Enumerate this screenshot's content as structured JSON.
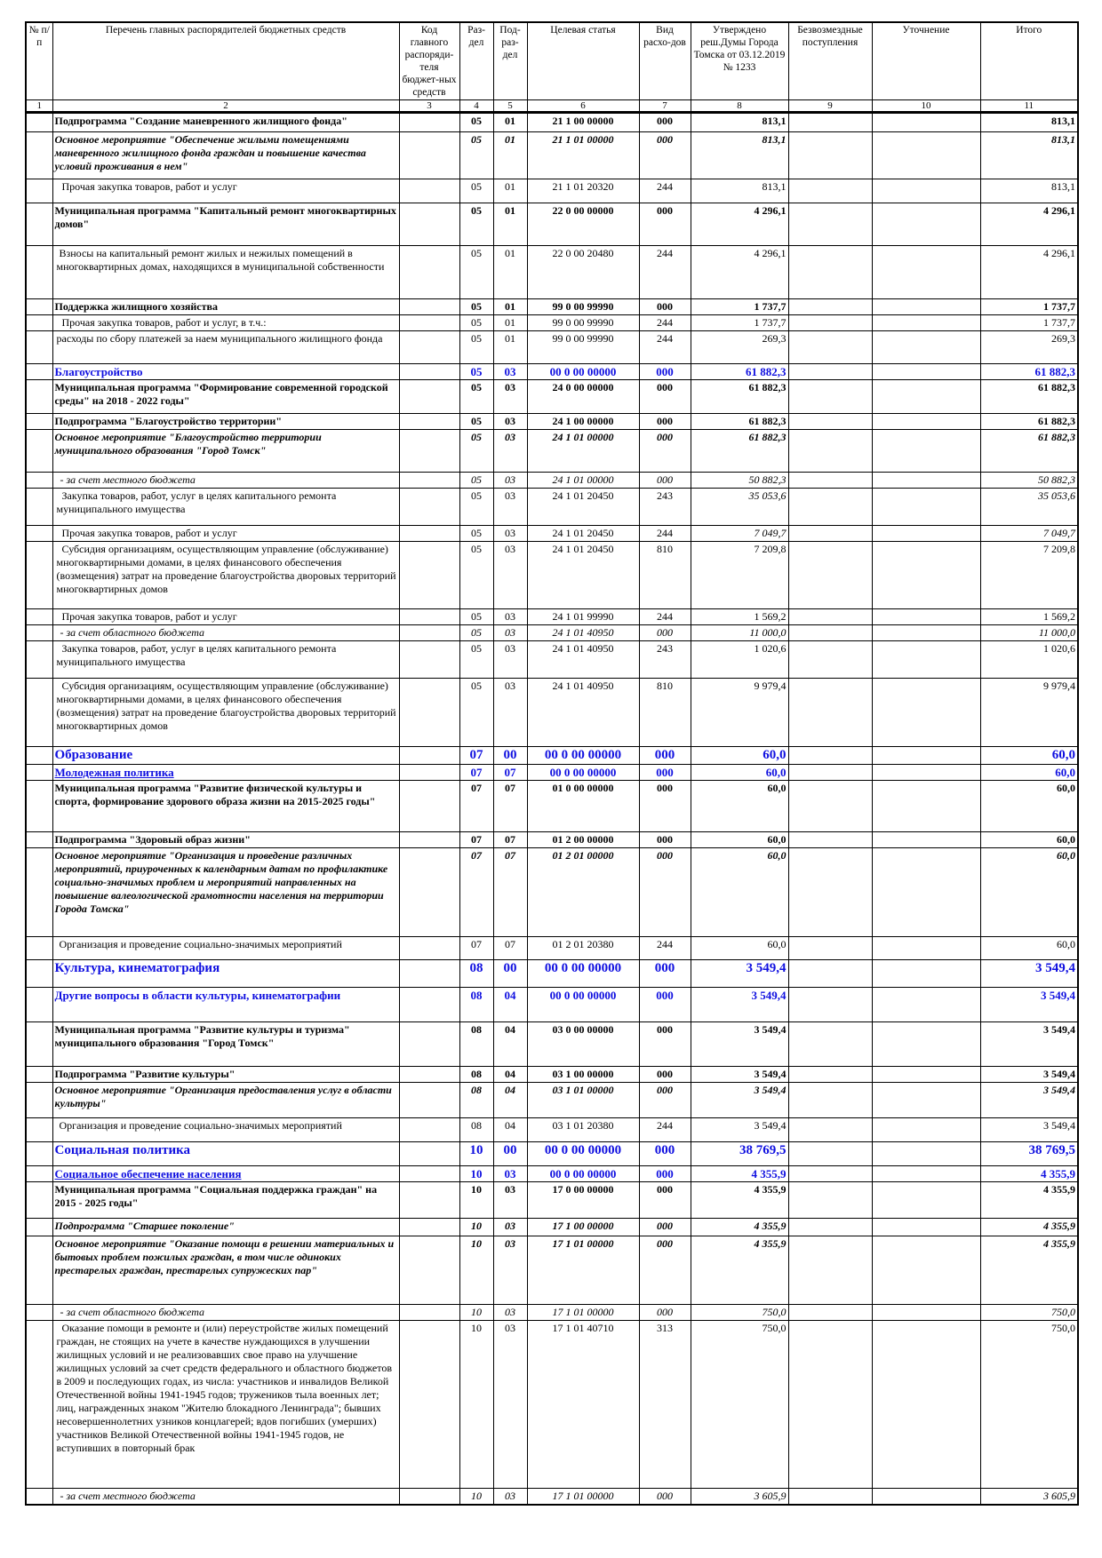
{
  "header": {
    "columns": [
      "№ п/п",
      "Перечень главных распорядителей бюджетных средств",
      "Код главного распоряди-теля бюджет-ных средств",
      "Раз-дел",
      "Под-раз-дел",
      "Целевая статья",
      "Вид расхо-дов",
      "Утверждено реш.Думы Города Томска от 03.12.2019 № 1233",
      "Безвозмездные поступления",
      "Уточнение",
      "Итого"
    ],
    "numbers": [
      "1",
      "2",
      "3",
      "4",
      "5",
      "6",
      "7",
      "8",
      "9",
      "10",
      "11"
    ]
  },
  "colors": {
    "highlight": "#1010e0"
  },
  "rows": [
    {
      "style": "b",
      "name": "Подпрограмма \"Создание маневренного жилищного фонда\"",
      "razdel": "05",
      "podrazdel": "01",
      "target": "21 1 00 00000",
      "vid": "000",
      "approved": "813,1",
      "total": "813,1"
    },
    {
      "style": "bi",
      "name": "Основное мероприятие \"Обеспечение жилыми помещениями маневренного жилищного фонда граждан и повышение качества условий проживания в нем\"",
      "razdel": "05",
      "podrazdel": "01",
      "target": "21 1 01 00000",
      "vid": "000",
      "approved": "813,1",
      "total": "813,1"
    },
    {
      "style": "n",
      "name": "  Прочая закупка товаров, работ и услуг",
      "razdel": "05",
      "podrazdel": "01",
      "target": "21 1 01 20320",
      "vid": "244",
      "approved": "813,1",
      "total": "813,1"
    },
    {
      "style": "b",
      "name": "Муниципальная программа \"Капитальный ремонт многоквартирных домов\"",
      "razdel": "05",
      "podrazdel": "01",
      "target": "22 0 00 00000",
      "vid": "000",
      "approved": "4 296,1",
      "total": "4 296,1"
    },
    {
      "style": "n",
      "name": " Взносы на капитальный ремонт жилых и нежилых помещений в многоквартирных домах, находящихся в муниципальной собственности",
      "razdel": "05",
      "podrazdel": "01",
      "target": "22 0 00 20480",
      "vid": "244",
      "approved": "4 296,1",
      "total": "4 296,1"
    },
    {
      "style": "b",
      "name": "Поддержка жилищного хозяйства",
      "razdel": "05",
      "podrazdel": "01",
      "target": "99 0 00 99990",
      "vid": "000",
      "approved": "1 737,7",
      "total": "1 737,7"
    },
    {
      "style": "n",
      "name": "  Прочая закупка товаров, работ и услуг, в т.ч.:",
      "razdel": "05",
      "podrazdel": "01",
      "target": "99 0 00 99990",
      "vid": "244",
      "approved": "1 737,7",
      "total": "1 737,7"
    },
    {
      "style": "n",
      "name": "расходы по сбору платежей за наем муниципального жилищного фонда",
      "razdel": "05",
      "podrazdel": "01",
      "target": "99 0 00 99990",
      "vid": "244",
      "approved": "269,3",
      "total": "269,3"
    },
    {
      "style": "blue",
      "name": "Благоустройство",
      "razdel": "05",
      "podrazdel": "03",
      "target": "00 0 00 00000",
      "vid": "000",
      "approved": "61 882,3",
      "total": "61 882,3"
    },
    {
      "style": "b",
      "name": "Муниципальная программа \"Формирование современной городской среды\" на 2018 - 2022 годы\"",
      "razdel": "05",
      "podrazdel": "03",
      "target": "24 0 00 00000",
      "vid": "000",
      "approved": "61 882,3",
      "total": "61 882,3"
    },
    {
      "style": "b",
      "name": "Подпрограмма \"Благоустройство территории\"",
      "razdel": "05",
      "podrazdel": "03",
      "target": "24 1 00 00000",
      "vid": "000",
      "approved": "61 882,3",
      "total": "61 882,3"
    },
    {
      "style": "bi",
      "name": "Основное мероприятие \"Благоустройство территории муниципального образования \"Город Томск\"",
      "razdel": "05",
      "podrazdel": "03",
      "target": "24 1 01 00000",
      "vid": "000",
      "approved": "61 882,3",
      "total": "61 882,3"
    },
    {
      "style": "i",
      "name": "  - за счет местного бюджета",
      "razdel": "05",
      "podrazdel": "03",
      "target": "24 1 01 00000",
      "vid": "000",
      "approved": "50 882,3",
      "total": "50 882,3"
    },
    {
      "style": "n",
      "name": "  Закупка товаров, работ, услуг в целях капитального ремонта муниципального имущества",
      "razdel": "05",
      "podrazdel": "03",
      "target": "24 1 01 20450",
      "vid": "243",
      "approved": "35 053,6",
      "total": "35 053,6",
      "num_italic": true
    },
    {
      "style": "n",
      "name": "  Прочая закупка товаров, работ и услуг",
      "razdel": "05",
      "podrazdel": "03",
      "target": "24 1 01 20450",
      "vid": "244",
      "approved": "7 049,7",
      "total": "7 049,7",
      "num_italic": true
    },
    {
      "style": "n",
      "name": "  Субсидия организациям, осуществляющим управление (обслуживание) многоквартирными домами, в целях финансового обеспечения (возмещения) затрат на проведение благоустройства дворовых территорий многоквартирных домов",
      "razdel": "05",
      "podrazdel": "03",
      "target": "24 1 01 20450",
      "vid": "810",
      "approved": "7 209,8",
      "total": "7 209,8"
    },
    {
      "style": "n",
      "name": "  Прочая закупка товаров, работ и услуг",
      "razdel": "05",
      "podrazdel": "03",
      "target": "24 1 01 99990",
      "vid": "244",
      "approved": "1 569,2",
      "total": "1 569,2"
    },
    {
      "style": "i",
      "name": "  - за счет областного бюджета",
      "razdel": "05",
      "podrazdel": "03",
      "target": "24 1 01 40950",
      "vid": "000",
      "approved": "11 000,0",
      "total": "11 000,0"
    },
    {
      "style": "n",
      "name": "  Закупка товаров, работ, услуг в целях капитального ремонта муниципального имущества",
      "razdel": "05",
      "podrazdel": "03",
      "target": "24 1 01 40950",
      "vid": "243",
      "approved": "1 020,6",
      "total": "1 020,6"
    },
    {
      "style": "n",
      "name": "  Субсидия организациям, осуществляющим управление (обслуживание) многоквартирными домами, в целях финансового обеспечения (возмещения) затрат на проведение благоустройства дворовых территорий многоквартирных домов",
      "razdel": "05",
      "podrazdel": "03",
      "target": "24 1 01 40950",
      "vid": "810",
      "approved": "9 979,4",
      "total": "9 979,4"
    },
    {
      "style": "blue2",
      "name": "Образование",
      "razdel": "07",
      "podrazdel": "00",
      "target": "00 0 00 00000",
      "vid": "000",
      "approved": "60,0",
      "total": "60,0"
    },
    {
      "style": "blue",
      "name": "Молодежная политика",
      "razdel": "07",
      "podrazdel": "07",
      "target": "00 0 00 00000",
      "vid": "000",
      "approved": "60,0",
      "total": "60,0",
      "underline": true
    },
    {
      "style": "b",
      "name": "Муниципальная программа \"Развитие физической культуры и спорта, формирование здорового образа жизни на 2015-2025 годы\"",
      "razdel": "07",
      "podrazdel": "07",
      "target": "01 0 00 00000",
      "vid": "000",
      "approved": "60,0",
      "total": "60,0"
    },
    {
      "style": "b",
      "name": "Подпрограмма \"Здоровый образ жизни\"",
      "razdel": "07",
      "podrazdel": "07",
      "target": "01 2 00 00000",
      "vid": "000",
      "approved": "60,0",
      "total": "60,0"
    },
    {
      "style": "bi",
      "name": "Основное мероприятие \"Организация и проведение различных мероприятий, приуроченных к календарным датам по профилактике социально-значимых проблем и мероприятий направленных на повышение валеологической грамотности населения на территории Города Томска\"",
      "razdel": "07",
      "podrazdel": "07",
      "target": "01 2 01 00000",
      "vid": "000",
      "approved": "60,0",
      "total": "60,0"
    },
    {
      "style": "n",
      "name": " Организация и проведение социально-значимых мероприятий",
      "razdel": "07",
      "podrazdel": "07",
      "target": "01 2 01 20380",
      "vid": "244",
      "approved": "60,0",
      "total": "60,0"
    },
    {
      "style": "blue2",
      "name": "Культура, кинематография",
      "razdel": "08",
      "podrazdel": "00",
      "target": "00 0 00 00000",
      "vid": "000",
      "approved": "3 549,4",
      "total": "3 549,4"
    },
    {
      "style": "blue",
      "name": "Другие вопросы в области культуры, кинематографии",
      "razdel": "08",
      "podrazdel": "04",
      "target": "00 0 00 00000",
      "vid": "000",
      "approved": "3 549,4",
      "total": "3 549,4"
    },
    {
      "style": "b",
      "name": "Муниципальная программа \"Развитие культуры и туризма\" муниципального образования \"Город Томск\"",
      "razdel": "08",
      "podrazdel": "04",
      "target": "03 0 00 00000",
      "vid": "000",
      "approved": "3 549,4",
      "total": "3 549,4"
    },
    {
      "style": "b",
      "name": "Подпрограмма \"Развитие культуры\"",
      "razdel": "08",
      "podrazdel": "04",
      "target": "03 1 00 00000",
      "vid": "000",
      "approved": "3 549,4",
      "total": "3 549,4"
    },
    {
      "style": "bi",
      "name": "Основное мероприятие \"Организация предоставления услуг в области культуры\"",
      "razdel": "08",
      "podrazdel": "04",
      "target": "03 1 01 00000",
      "vid": "000",
      "approved": "3 549,4",
      "total": "3 549,4"
    },
    {
      "style": "n",
      "name": " Организация и проведение социально-значимых мероприятий",
      "razdel": "08",
      "podrazdel": "04",
      "target": "03 1 01 20380",
      "vid": "244",
      "approved": "3 549,4",
      "total": "3 549,4"
    },
    {
      "style": "blue2",
      "name": "Социальная политика",
      "razdel": "10",
      "podrazdel": "00",
      "target": "00 0 00 00000",
      "vid": "000",
      "approved": "38 769,5",
      "total": "38 769,5"
    },
    {
      "style": "blue",
      "name": "Социальное обеспечение населения",
      "razdel": "10",
      "podrazdel": "03",
      "target": "00 0 00 00000",
      "vid": "000",
      "approved": "4 355,9",
      "total": "4 355,9",
      "underline": true
    },
    {
      "style": "b",
      "name": "Муниципальная программа \"Социальная поддержка граждан\" на 2015 - 2025 годы\"",
      "razdel": "10",
      "podrazdel": "03",
      "target": "17 0 00 00000",
      "vid": "000",
      "approved": "4 355,9",
      "total": "4 355,9"
    },
    {
      "style": "bi",
      "name": "Подпрограмма \"Старшее поколение\"",
      "razdel": "10",
      "podrazdel": "03",
      "target": "17 1 00 00000",
      "vid": "000",
      "approved": "4 355,9",
      "total": "4 355,9"
    },
    {
      "style": "bi",
      "name": "Основное мероприятие \"Оказание помощи в решении материальных и бытовых проблем пожилых граждан, в том числе одиноких престарелых граждан, престарелых супружеских пар\"",
      "razdel": "10",
      "podrazdel": "03",
      "target": "17 1 01 00000",
      "vid": "000",
      "approved": "4 355,9",
      "total": "4 355,9"
    },
    {
      "style": "i",
      "name": "  - за счет областного бюджета",
      "razdel": "10",
      "podrazdel": "03",
      "target": "17 1 01 00000",
      "vid": "000",
      "approved": "750,0",
      "total": "750,0"
    },
    {
      "style": "n",
      "name": "  Оказание помощи в ремонте и (или) переустройстве жилых помещений граждан, не стоящих на учете в качестве нуждающихся в улучшении жилищных условий и не реализовавших свое право на улучшение жилищных условий за счет средств федерального и областного бюджетов в 2009 и последующих годах, из числа: участников и инвалидов Великой Отечественной войны 1941-1945 годов; тружеников тыла военных лет; лиц, награжденных знаком \"Жителю блокадного Ленинграда\"; бывших несовершеннолетних узников концлагерей; вдов погибших (умерших) участников Великой Отечественной войны 1941-1945 годов, не вступивших в повторный брак",
      "razdel": "10",
      "podrazdel": "03",
      "target": "17 1 01 40710",
      "vid": "313",
      "approved": "750,0",
      "total": "750,0"
    },
    {
      "style": "i",
      "name": "  - за счет местного бюджета",
      "razdel": "10",
      "podrazdel": "03",
      "target": "17 1 01 00000",
      "vid": "000",
      "approved": "3 605,9",
      "total": "3 605,9"
    }
  ]
}
